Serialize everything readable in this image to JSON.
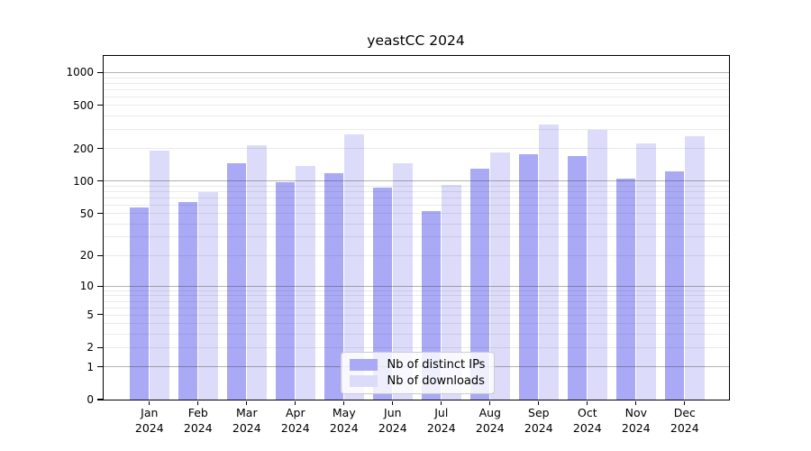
{
  "title": "yeastCC 2024",
  "chart_data": {
    "type": "bar",
    "title": "yeastCC 2024",
    "categories": [
      "Jan 2024",
      "Feb 2024",
      "Mar 2024",
      "Apr 2024",
      "May 2024",
      "Jun 2024",
      "Jul 2024",
      "Aug 2024",
      "Sep 2024",
      "Oct 2024",
      "Nov 2024",
      "Dec 2024"
    ],
    "series": [
      {
        "name": "Nb of distinct IPs",
        "color": "#a9a9f6",
        "values": [
          57,
          64,
          147,
          99,
          119,
          88,
          53,
          132,
          179,
          170,
          107,
          124
        ]
      },
      {
        "name": "Nb of downloads",
        "color": "#dcdcfa",
        "values": [
          192,
          79,
          215,
          138,
          270,
          147,
          92,
          185,
          334,
          299,
          222,
          260
        ]
      }
    ],
    "yscale": "log1p",
    "yticks": [
      0,
      1,
      2,
      5,
      10,
      20,
      50,
      100,
      200,
      500,
      1000
    ],
    "ylim": [
      0,
      1410
    ],
    "xlabel": "",
    "ylabel": "",
    "grid": true,
    "legend_position": "lower center"
  },
  "colors": {
    "background": "#ffffff",
    "bar_distinct_ips": "#a9a9f6",
    "bar_downloads": "#dcdcfa",
    "grid_major": "rgba(60,60,60,0.40)",
    "grid_minor": "rgba(60,60,60,0.11)",
    "spine": "#000000",
    "legend_border": "#cccccc"
  }
}
